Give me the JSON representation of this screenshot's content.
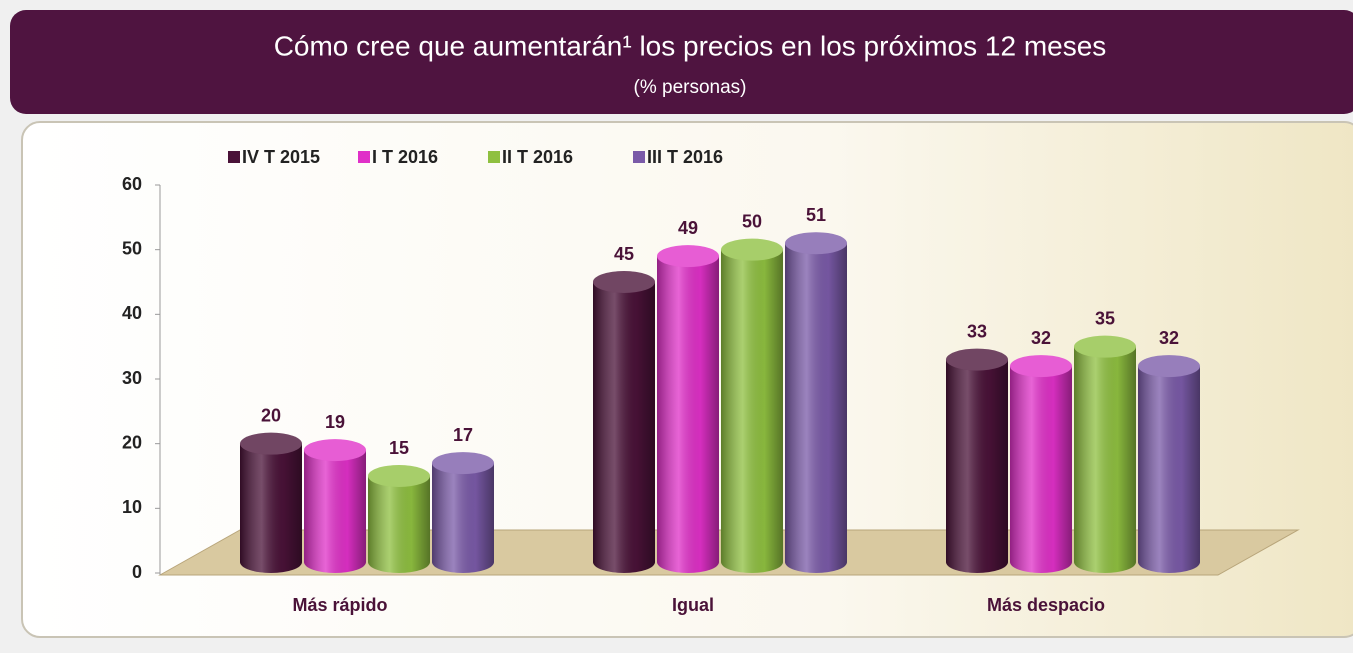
{
  "chart_data": {
    "type": "bar",
    "title": "Cómo cree que aumentarán¹ los precios en los próximos 12 meses",
    "subtitle": "(% personas)",
    "categories": [
      "Más rápido",
      "Igual",
      "Más despacio"
    ],
    "series": [
      {
        "name": "IV T 2015",
        "color": "#4a1238",
        "values": [
          20,
          45,
          33
        ]
      },
      {
        "name": "I T 2016",
        "color": "#e030c8",
        "values": [
          19,
          49,
          32
        ]
      },
      {
        "name": "II T 2016",
        "color": "#8fc040",
        "values": [
          15,
          50,
          35
        ]
      },
      {
        "name": "III T 2016",
        "color": "#7a5aa8",
        "values": [
          17,
          51,
          32
        ]
      }
    ],
    "ylim": [
      0,
      60
    ],
    "yticks": [
      0,
      10,
      20,
      30,
      40,
      50,
      60
    ],
    "grid": false,
    "legend": "top"
  }
}
